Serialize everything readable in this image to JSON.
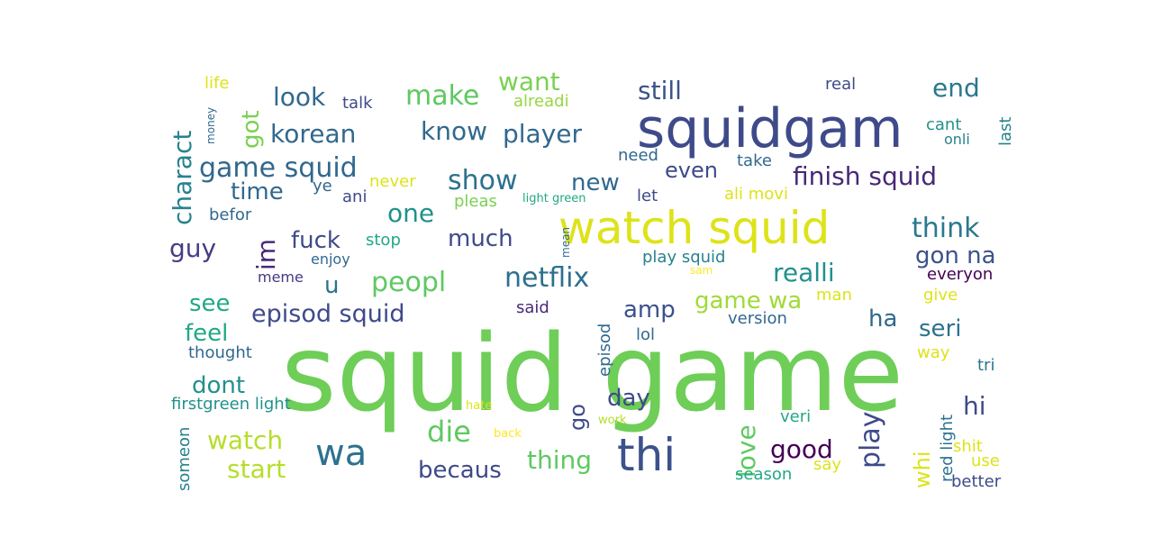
{
  "wordcloud": {
    "words": [
      {
        "text": "squid game",
        "color": "#6ece58"
      },
      {
        "text": "squidgam",
        "color": "#3e4a89"
      },
      {
        "text": "watch squid",
        "color": "#dde318"
      },
      {
        "text": "thi",
        "color": "#3b528b"
      },
      {
        "text": "wa",
        "color": "#2c728e"
      },
      {
        "text": "netflix",
        "color": "#2d708e"
      },
      {
        "text": "peopl",
        "color": "#5ec962"
      },
      {
        "text": "show",
        "color": "#2c728e"
      },
      {
        "text": "game squid",
        "color": "#31688e"
      },
      {
        "text": "make",
        "color": "#5ec962"
      },
      {
        "text": "think",
        "color": "#2a788e"
      },
      {
        "text": "episod squid",
        "color": "#3e4a89"
      },
      {
        "text": "die",
        "color": "#5ec962"
      },
      {
        "text": "watch",
        "color": "#b5de2b"
      },
      {
        "text": "start",
        "color": "#b5de2b"
      },
      {
        "text": "becaus",
        "color": "#3e4a89"
      },
      {
        "text": "thing",
        "color": "#5ec962"
      },
      {
        "text": "play",
        "color": "#3e4a89"
      },
      {
        "text": "good",
        "color": "#440154"
      },
      {
        "text": "love",
        "color": "#5ec962"
      },
      {
        "text": "finish squid",
        "color": "#482878"
      },
      {
        "text": "player",
        "color": "#31688e"
      },
      {
        "text": "korean",
        "color": "#31688e"
      },
      {
        "text": "know",
        "color": "#31688e"
      },
      {
        "text": "one",
        "color": "#21918c"
      },
      {
        "text": "realli",
        "color": "#21918c"
      },
      {
        "text": "gon na",
        "color": "#3b528b"
      },
      {
        "text": "much",
        "color": "#3e4a89"
      },
      {
        "text": "fuck",
        "color": "#3e4a89"
      },
      {
        "text": "still",
        "color": "#3b528b"
      },
      {
        "text": "end",
        "color": "#2a788e"
      },
      {
        "text": "look",
        "color": "#31688e"
      },
      {
        "text": "want",
        "color": "#7ad151"
      },
      {
        "text": "new",
        "color": "#31688e"
      },
      {
        "text": "even",
        "color": "#3e4a89"
      },
      {
        "text": "time",
        "color": "#31688e"
      },
      {
        "text": "guy",
        "color": "#433e85"
      },
      {
        "text": "im",
        "color": "#482878"
      },
      {
        "text": "u",
        "color": "#2c728e"
      },
      {
        "text": "got",
        "color": "#7ad151"
      },
      {
        "text": "charact",
        "color": "#26828e"
      },
      {
        "text": "see",
        "color": "#22a884"
      },
      {
        "text": "feel",
        "color": "#22a884"
      },
      {
        "text": "dont",
        "color": "#21918c"
      },
      {
        "text": "amp",
        "color": "#3b528b"
      },
      {
        "text": "game wa",
        "color": "#a0da39"
      },
      {
        "text": "ha",
        "color": "#31688e"
      },
      {
        "text": "seri",
        "color": "#2c728e"
      },
      {
        "text": "hi",
        "color": "#3e4a89"
      },
      {
        "text": "day",
        "color": "#3e4a89"
      },
      {
        "text": "go",
        "color": "#3e4a89"
      },
      {
        "text": "whi",
        "color": "#dde318"
      },
      {
        "text": "life",
        "color": "#dde318"
      },
      {
        "text": "talk",
        "color": "#3e4a89"
      },
      {
        "text": "alreadi",
        "color": "#95d840"
      },
      {
        "text": "real",
        "color": "#3e4a89"
      },
      {
        "text": "money",
        "color": "#31688e"
      },
      {
        "text": "cant",
        "color": "#21918c"
      },
      {
        "text": "onli",
        "color": "#26828e"
      },
      {
        "text": "last",
        "color": "#26828e"
      },
      {
        "text": "need",
        "color": "#31688e"
      },
      {
        "text": "take",
        "color": "#31688e"
      },
      {
        "text": "ye",
        "color": "#31688e"
      },
      {
        "text": "never",
        "color": "#dde318"
      },
      {
        "text": "ani",
        "color": "#3e4a89"
      },
      {
        "text": "pleas",
        "color": "#7ad151"
      },
      {
        "text": "light green",
        "color": "#22a884"
      },
      {
        "text": "let",
        "color": "#3e4a89"
      },
      {
        "text": "ali movi",
        "color": "#dde318"
      },
      {
        "text": "befor",
        "color": "#31688e"
      },
      {
        "text": "stop",
        "color": "#22a884"
      },
      {
        "text": "mean",
        "color": "#31688e"
      },
      {
        "text": "play squid",
        "color": "#26828e"
      },
      {
        "text": "enjoy",
        "color": "#31688e"
      },
      {
        "text": "sam",
        "color": "#fde725"
      },
      {
        "text": "meme",
        "color": "#443983"
      },
      {
        "text": "everyon",
        "color": "#440154"
      },
      {
        "text": "give",
        "color": "#dde318"
      },
      {
        "text": "man",
        "color": "#dde318"
      },
      {
        "text": "version",
        "color": "#31688e"
      },
      {
        "text": "said",
        "color": "#482878"
      },
      {
        "text": "episod",
        "color": "#31688e"
      },
      {
        "text": "lol",
        "color": "#31688e"
      },
      {
        "text": "thought",
        "color": "#31688e"
      },
      {
        "text": "way",
        "color": "#dde318"
      },
      {
        "text": "tri",
        "color": "#2a788e"
      },
      {
        "text": "firstgreen light",
        "color": "#21918c"
      },
      {
        "text": "hate",
        "color": "#dde318"
      },
      {
        "text": "veri",
        "color": "#22a884"
      },
      {
        "text": "work",
        "color": "#b5de2b"
      },
      {
        "text": "back",
        "color": "#fde725"
      },
      {
        "text": "red light",
        "color": "#2c728e"
      },
      {
        "text": "shit",
        "color": "#dde318"
      },
      {
        "text": "use",
        "color": "#dde318"
      },
      {
        "text": "someon",
        "color": "#26828e"
      },
      {
        "text": "season",
        "color": "#22a884"
      },
      {
        "text": "say",
        "color": "#dde318"
      },
      {
        "text": "better",
        "color": "#3e4a89"
      }
    ]
  }
}
